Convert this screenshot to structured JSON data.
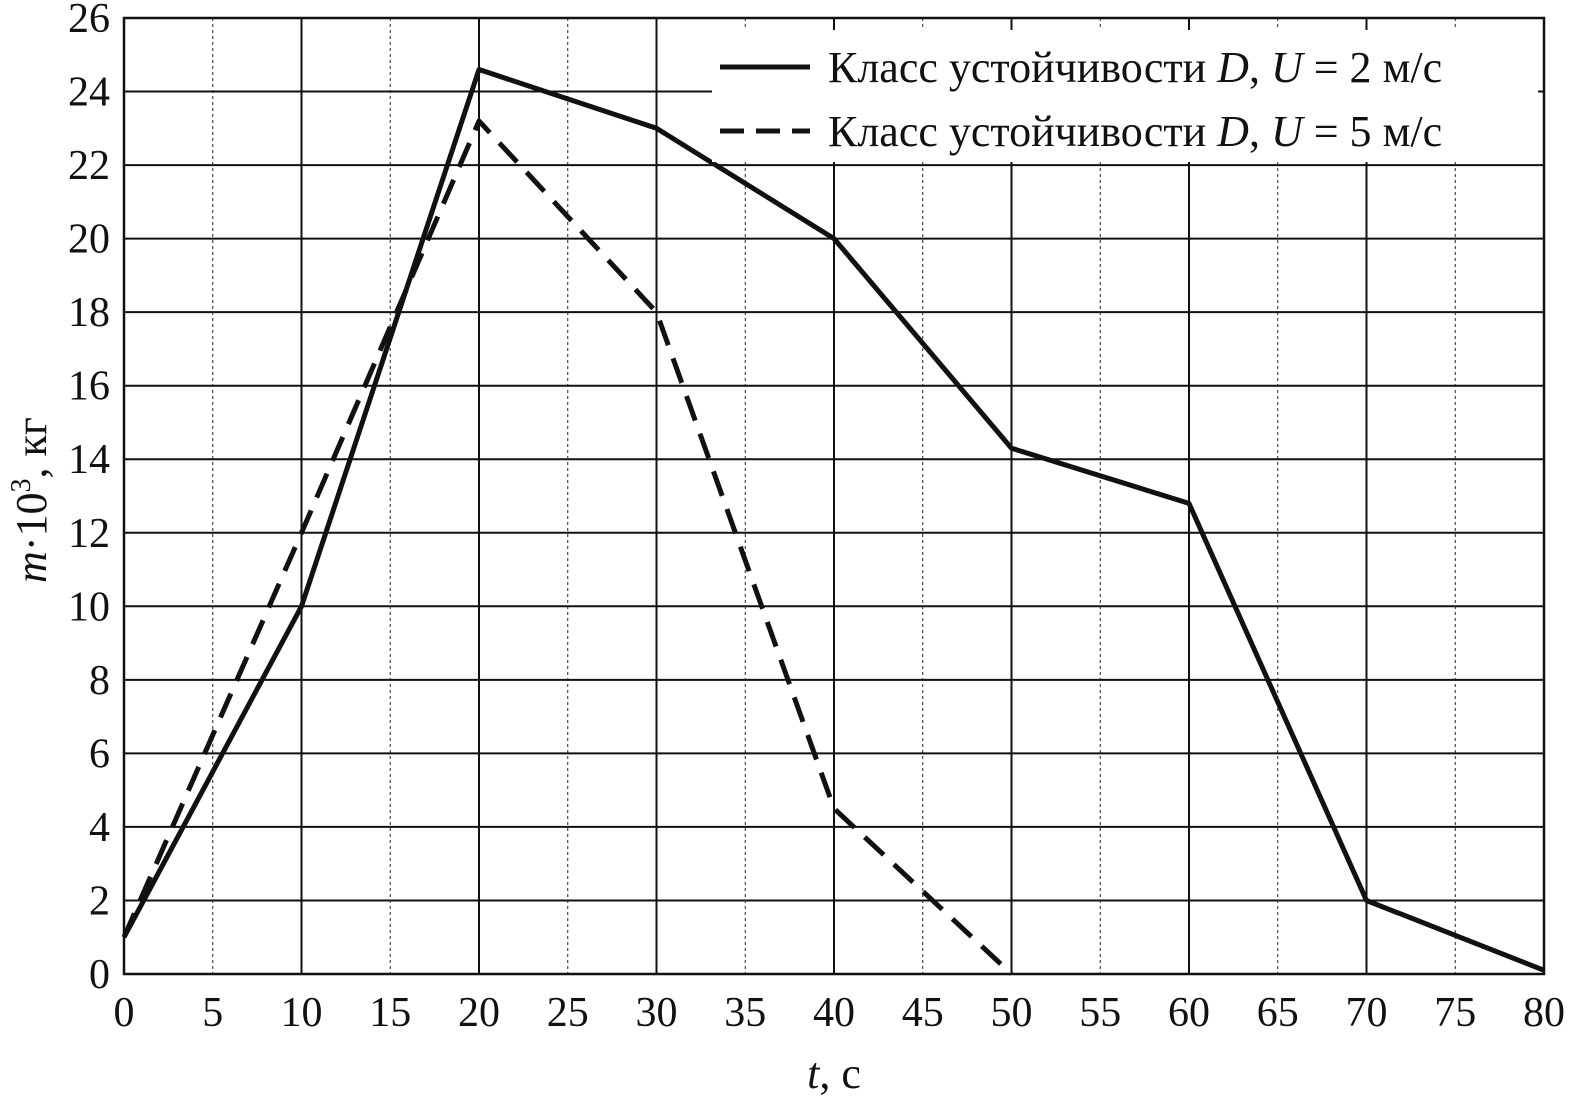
{
  "chart_data": {
    "type": "line",
    "xlabel_var": "t",
    "xlabel_unit": ", с",
    "ylabel_var": "m",
    "ylabel_mid": "·10",
    "ylabel_sup": "3",
    "ylabel_unit": ", кг",
    "xlim": [
      0,
      80
    ],
    "ylim": [
      0,
      26
    ],
    "x_ticks": [
      "0",
      "5",
      "10",
      "15",
      "20",
      "25",
      "30",
      "35",
      "40",
      "45",
      "50",
      "55",
      "60",
      "65",
      "70",
      "75",
      "80"
    ],
    "y_ticks": [
      "0",
      "2",
      "4",
      "6",
      "8",
      "10",
      "12",
      "14",
      "16",
      "18",
      "20",
      "22",
      "24",
      "26"
    ],
    "grid": true,
    "legend_position": "top-right",
    "series": [
      {
        "name": "Класс устойчивости D, U = 2 м/с",
        "legend": {
          "prefix": "Класс устойчивости ",
          "class_var": "D",
          "sep": ", ",
          "speed_var": "U",
          "eq": " = 2  ",
          "unit": "м/с"
        },
        "style": "solid",
        "x": [
          0,
          10,
          20,
          30,
          40,
          50,
          60,
          70,
          80
        ],
        "y": [
          1,
          10,
          24.6,
          23,
          20,
          14.3,
          12.8,
          2,
          0.1
        ]
      },
      {
        "name": "Класс устойчивости D, U = 5 м/с",
        "legend": {
          "prefix": "Класс устойчивости ",
          "class_var": "D",
          "sep": ", ",
          "speed_var": "U",
          "eq": " = 5  ",
          "unit": "м/с"
        },
        "style": "dashed",
        "x": [
          0,
          10,
          20,
          30,
          40,
          50
        ],
        "y": [
          1,
          12,
          23.2,
          18,
          4.5,
          0
        ]
      }
    ],
    "colors": {
      "line": "#111111",
      "background": "#ffffff"
    }
  }
}
